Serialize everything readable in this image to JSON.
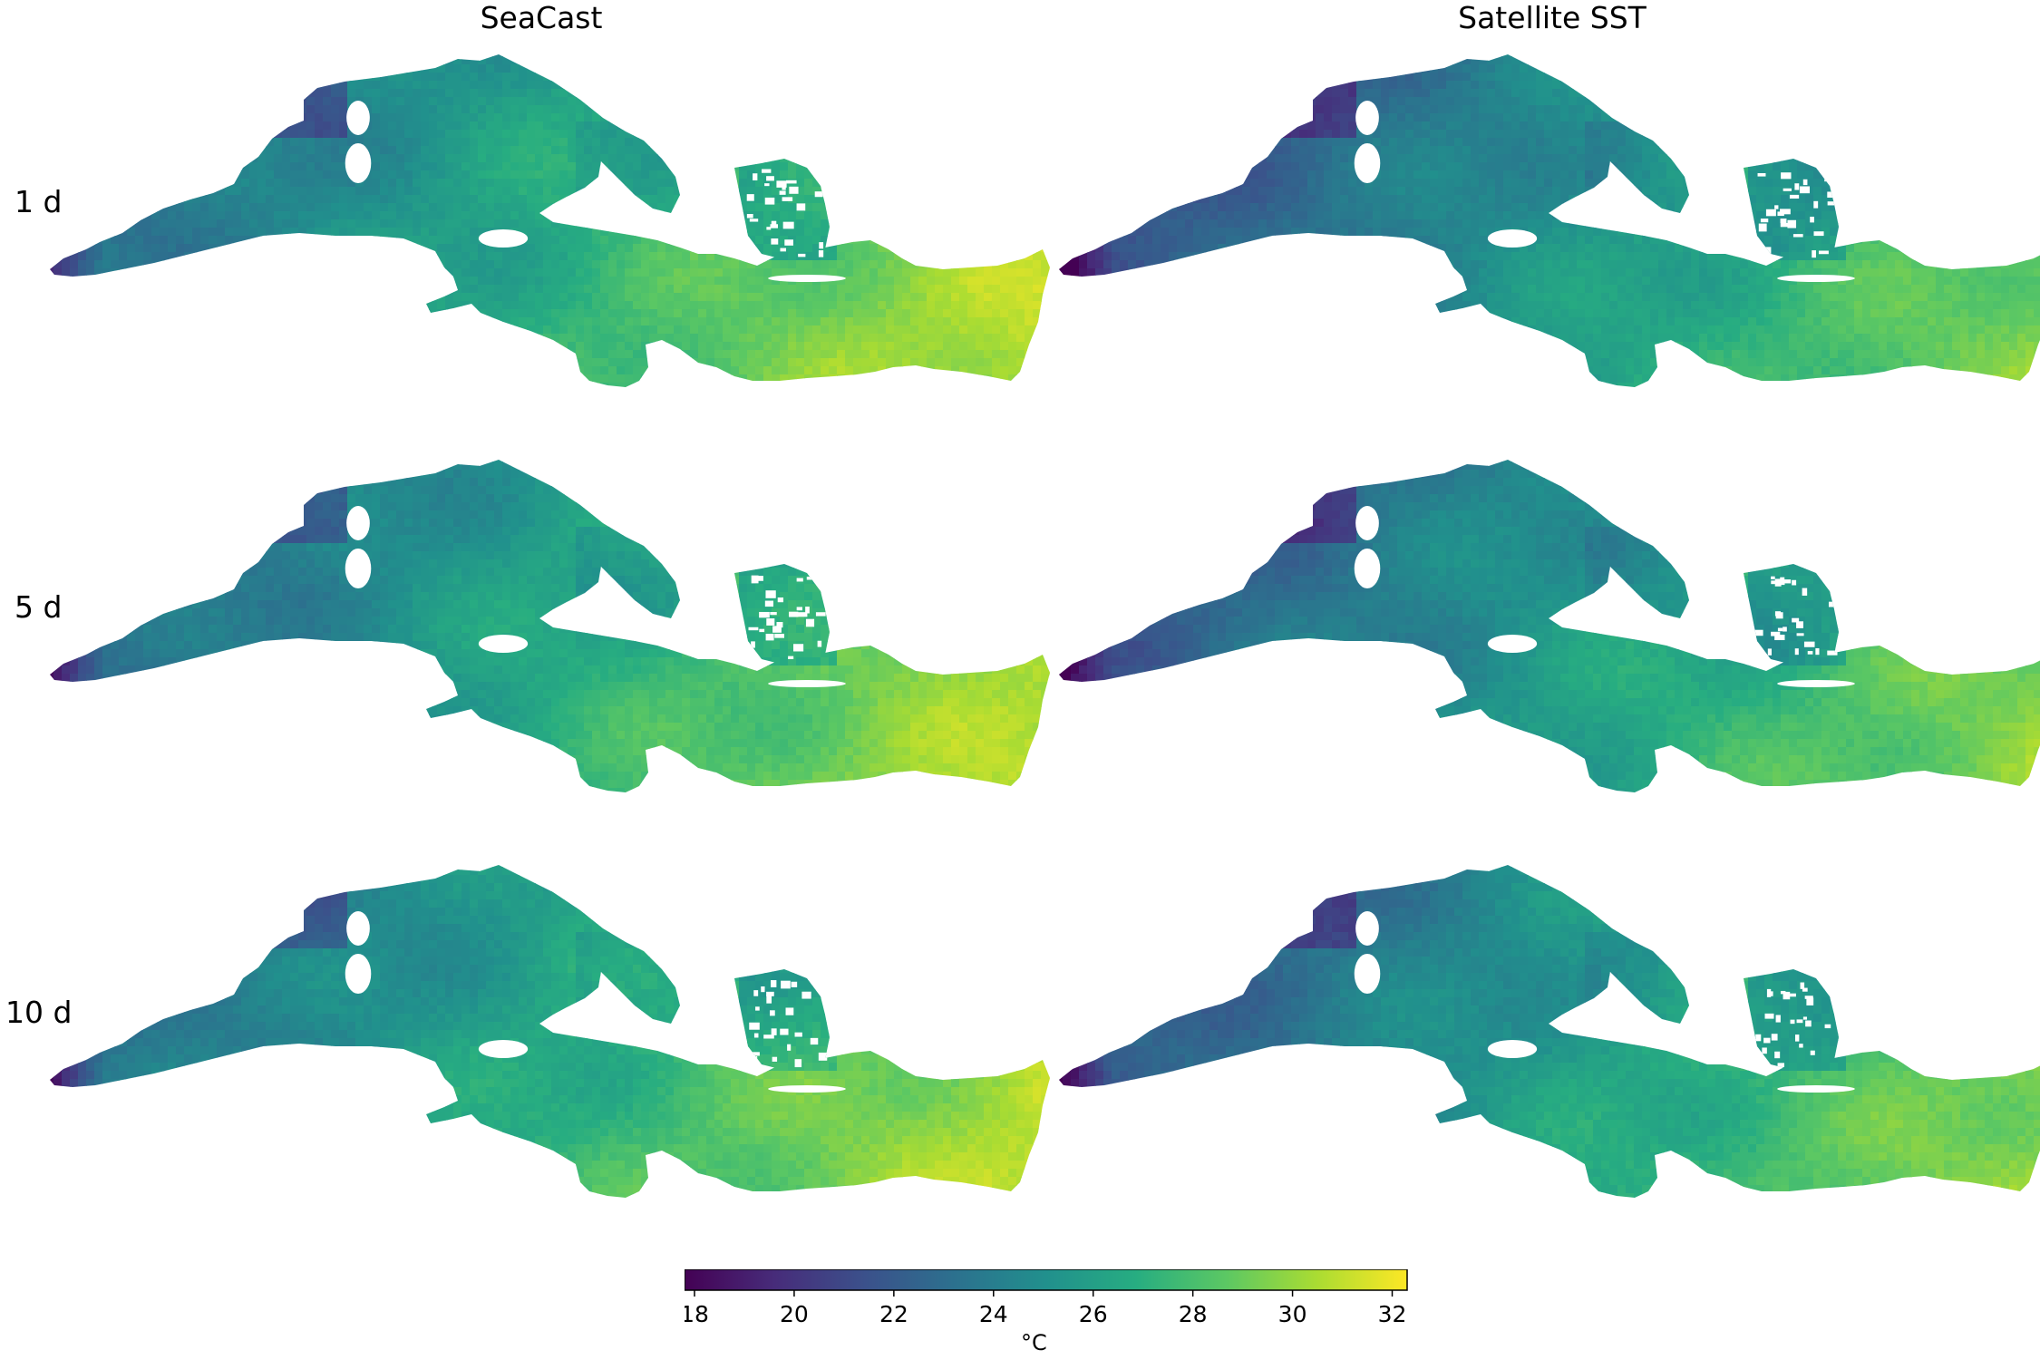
{
  "column_titles": [
    "SeaCast",
    "Satellite SST"
  ],
  "row_labels": [
    "1 d",
    "5 d",
    "10 d"
  ],
  "chart_data": {
    "type": "heatmap",
    "title": "",
    "subtitle": "",
    "columns": [
      "SeaCast",
      "Satellite SST"
    ],
    "rows": [
      "1 d",
      "5 d",
      "10 d"
    ],
    "colormap": "viridis",
    "colorbar": {
      "label": "°C",
      "range": [
        17.8,
        32.3
      ],
      "ticks": [
        18,
        20,
        22,
        24,
        26,
        28,
        30,
        32
      ]
    },
    "panels": [
      {
        "row": "1 d",
        "column": "SeaCast",
        "approx_range_C": [
          18,
          32
        ],
        "west_min_C": 18,
        "east_max_C": 31
      },
      {
        "row": "1 d",
        "column": "Satellite SST",
        "approx_range_C": [
          19,
          30
        ],
        "west_min_C": 19,
        "east_max_C": 29
      },
      {
        "row": "5 d",
        "column": "SeaCast",
        "approx_range_C": [
          19,
          31
        ],
        "west_min_C": 19,
        "east_max_C": 31
      },
      {
        "row": "5 d",
        "column": "Satellite SST",
        "approx_range_C": [
          20,
          30
        ],
        "west_min_C": 20,
        "east_max_C": 29
      },
      {
        "row": "10 d",
        "column": "SeaCast",
        "approx_range_C": [
          19,
          31
        ],
        "west_min_C": 19,
        "east_max_C": 31
      },
      {
        "row": "10 d",
        "column": "Satellite SST",
        "approx_range_C": [
          20,
          30
        ],
        "west_min_C": 20,
        "east_max_C": 29
      }
    ],
    "colors": {
      "viridis": [
        "#440154",
        "#472c7a",
        "#3b518b",
        "#2c718e",
        "#21908d",
        "#27ad81",
        "#5cc863",
        "#aadc32",
        "#fde725"
      ]
    }
  }
}
